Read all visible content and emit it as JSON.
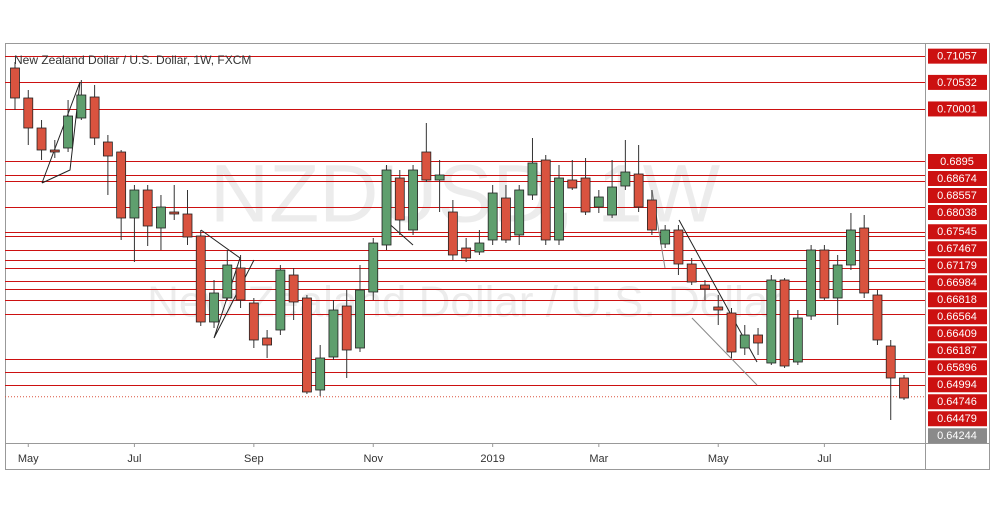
{
  "chart_data": {
    "type": "candlestick",
    "title": "New Zealand Dollar / U.S. Dollar, 1W, FXCM",
    "watermark_symbol": "NZDUSD, 1W",
    "watermark_name": "New Zealand Dollar / U.S. Dollar",
    "up_color": "#5f9f6e",
    "down_color": "#d9533f",
    "level_color": "#cc1111",
    "ylim": [
      0.6332,
      0.7132
    ],
    "levels": [
      0.71057,
      0.70532,
      0.70001,
      0.6895,
      0.68674,
      0.68557,
      0.68038,
      0.67545,
      0.67467,
      0.67179,
      0.66984,
      0.66818,
      0.66564,
      0.66409,
      0.66187,
      0.65896,
      0.64994,
      0.64746,
      0.64479
    ],
    "current_price": 0.64244,
    "xticks": [
      {
        "value": 1,
        "label": "May"
      },
      {
        "value": 9,
        "label": "Jul"
      },
      {
        "value": 18,
        "label": "Sep"
      },
      {
        "value": 27,
        "label": "Nov"
      },
      {
        "value": 36,
        "label": "2019"
      },
      {
        "value": 44,
        "label": "Mar"
      },
      {
        "value": 53,
        "label": "May"
      },
      {
        "value": 61,
        "label": "Jul"
      }
    ],
    "open": [
      0.7082,
      0.7022,
      0.6962,
      0.6918,
      0.6922,
      0.6982,
      0.7024,
      0.6934,
      0.6914,
      0.6782,
      0.6838,
      0.6762,
      0.6794,
      0.679,
      0.6746,
      0.6574,
      0.6622,
      0.6682,
      0.6612,
      0.6542,
      0.6558,
      0.6668,
      0.6622,
      0.6438,
      0.6504,
      0.6606,
      0.6522,
      0.6634,
      0.6728,
      0.6862,
      0.6758,
      0.6914,
      0.6858,
      0.6794,
      0.6722,
      0.6714,
      0.6738,
      0.6822,
      0.6748,
      0.6828,
      0.6898,
      0.6738,
      0.6858,
      0.6862,
      0.6804,
      0.6788,
      0.6846,
      0.687,
      0.6818,
      0.673,
      0.6758,
      0.669,
      0.6648,
      0.6604,
      0.6592,
      0.6522,
      0.6548,
      0.6492,
      0.6658,
      0.6494,
      0.6586,
      0.6718,
      0.6622,
      0.6688,
      0.6762,
      0.6628,
      0.6526,
      0.6462
    ],
    "high": [
      0.7094,
      0.7038,
      0.6978,
      0.6938,
      0.7018,
      0.7058,
      0.7048,
      0.6948,
      0.6918,
      0.6848,
      0.6848,
      0.6828,
      0.6848,
      0.6838,
      0.6758,
      0.6658,
      0.6718,
      0.6708,
      0.6622,
      0.6558,
      0.6688,
      0.6682,
      0.6628,
      0.6528,
      0.6618,
      0.6638,
      0.6688,
      0.6742,
      0.6888,
      0.6878,
      0.6888,
      0.6972,
      0.6898,
      0.6818,
      0.6742,
      0.6758,
      0.6848,
      0.6848,
      0.6848,
      0.6942,
      0.6908,
      0.6888,
      0.6898,
      0.6902,
      0.6838,
      0.6898,
      0.6938,
      0.6928,
      0.6838,
      0.6768,
      0.6768,
      0.6702,
      0.6658,
      0.6628,
      0.6602,
      0.6568,
      0.6562,
      0.6668,
      0.6662,
      0.6598,
      0.6728,
      0.6728,
      0.6708,
      0.6792,
      0.6788,
      0.6638,
      0.6538,
      0.6468
    ],
    "low": [
      0.6998,
      0.6928,
      0.6898,
      0.6902,
      0.6914,
      0.6978,
      0.6928,
      0.6828,
      0.6738,
      0.6694,
      0.6726,
      0.6718,
      0.6778,
      0.6728,
      0.6566,
      0.6562,
      0.6618,
      0.6602,
      0.6522,
      0.6502,
      0.6548,
      0.6578,
      0.643,
      0.6426,
      0.6498,
      0.6462,
      0.6514,
      0.6618,
      0.6718,
      0.6748,
      0.6748,
      0.6854,
      0.6794,
      0.6698,
      0.6694,
      0.6708,
      0.6728,
      0.6732,
      0.6728,
      0.6818,
      0.6728,
      0.6728,
      0.6838,
      0.6788,
      0.6792,
      0.6782,
      0.6838,
      0.6794,
      0.6748,
      0.6722,
      0.6668,
      0.6648,
      0.6618,
      0.6568,
      0.6502,
      0.6508,
      0.6508,
      0.6488,
      0.6482,
      0.6488,
      0.6578,
      0.6618,
      0.6568,
      0.6678,
      0.6622,
      0.6528,
      0.6378,
      0.6418
    ],
    "close": [
      0.7022,
      0.6962,
      0.6918,
      0.6914,
      0.6986,
      0.7028,
      0.6942,
      0.6906,
      0.6782,
      0.6838,
      0.6766,
      0.6804,
      0.679,
      0.6744,
      0.6574,
      0.6632,
      0.6688,
      0.6618,
      0.6538,
      0.6528,
      0.6678,
      0.6614,
      0.6434,
      0.6502,
      0.6598,
      0.6518,
      0.6638,
      0.6732,
      0.6878,
      0.6778,
      0.6878,
      0.6858,
      0.6868,
      0.6708,
      0.6702,
      0.6732,
      0.6832,
      0.6738,
      0.6838,
      0.6892,
      0.6738,
      0.6862,
      0.6842,
      0.6794,
      0.6824,
      0.6844,
      0.6874,
      0.6804,
      0.6758,
      0.6758,
      0.669,
      0.6654,
      0.664,
      0.6598,
      0.6514,
      0.6548,
      0.6532,
      0.6658,
      0.6486,
      0.6582,
      0.6718,
      0.6622,
      0.6688,
      0.6758,
      0.6632,
      0.6538,
      0.6462,
      0.6422
    ]
  }
}
